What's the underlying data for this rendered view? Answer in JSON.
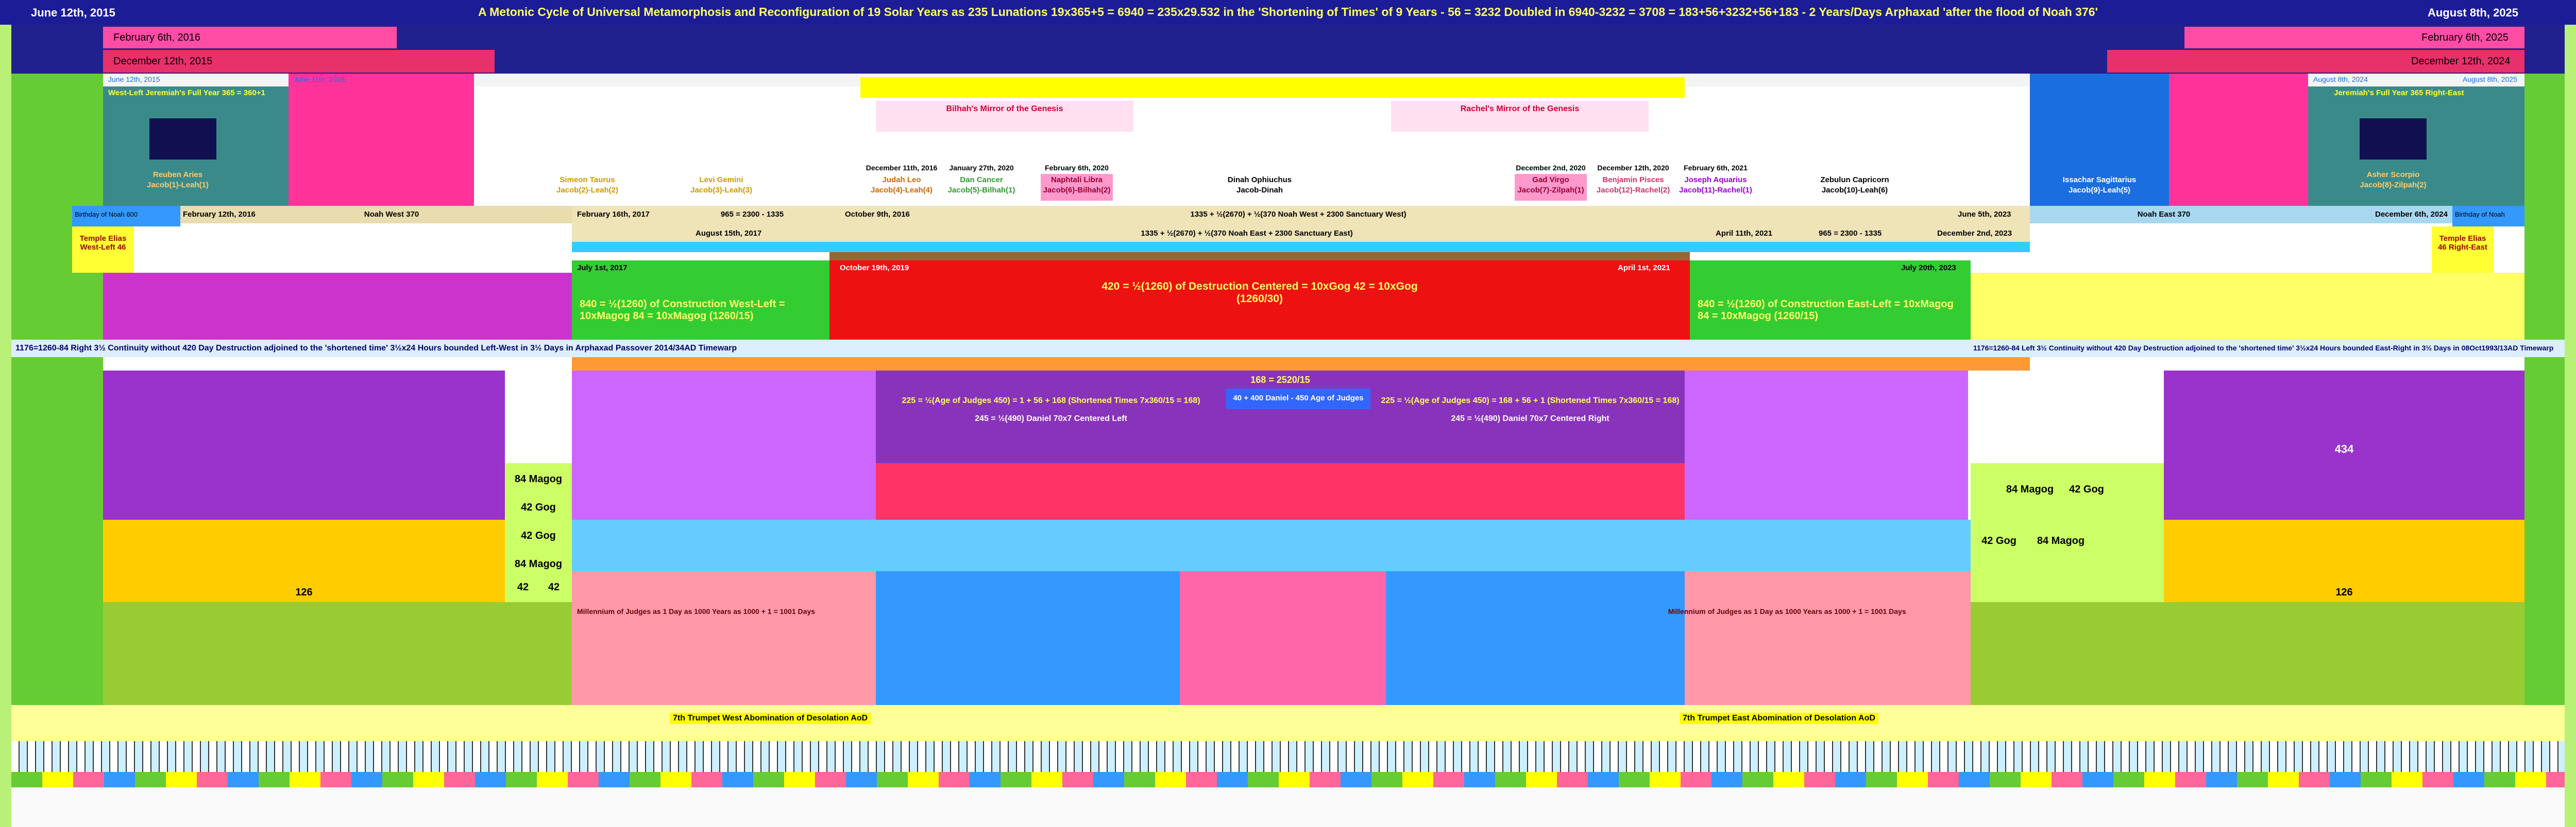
{
  "header": {
    "left_date": "June 12th, 2015",
    "title": "A Metonic Cycle of Universal Metamorphosis and Reconfiguration  of  19 Solar Years as 235 Lunations 19x365+5 = 6940 = 235x29.532 in the 'Shortening of Times' of 9 Years - 56 = 3232 Doubled in 6940-3232 = 3708 = 183+56+3232+56+183 - 2 Years/Days Arphaxad 'after the flood of Noah 376'",
    "right_date": "August 8th, 2025"
  },
  "top_dates": [
    "February 6th, 2016",
    "February 6th, 2025",
    "December 12th, 2015",
    "December 12th, 2024",
    "June 12th, 2015",
    "June 11th, 2016",
    "August 8th, 2024",
    "August 8th, 2025"
  ],
  "jeremiah": [
    "West-Left Jeremiah's Full Year 365 = 360+1",
    "Jeremiah's Full Year 365 Right-East"
  ],
  "mirrors": [
    "Bilhah's Mirror of the Genesis",
    "Rachel's Mirror of the Genesis"
  ],
  "tribes": [
    {
      "name": "Reuben Aries",
      "parent": "Jacob(1)-Leah(1)"
    },
    {
      "name": "Simeon Taurus",
      "parent": "Jacob(2)-Leah(2)"
    },
    {
      "name": "Levi Gemini",
      "parent": "Jacob(3)-Leah(3)"
    },
    {
      "name": "Judah Leo",
      "parent": "Jacob(4)-Leah(4)"
    },
    {
      "name": "Dan Cancer",
      "parent": "Jacob(5)-Bilhah(1)"
    },
    {
      "name": "Naphtali Libra",
      "parent": "Jacob(6)-Bilhah(2)"
    },
    {
      "name": "Dinah Ophiuchus",
      "parent": "Jacob-Dinah"
    },
    {
      "name": "Gad Virgo",
      "parent": "Jacob(7)-Zilpah(1)"
    },
    {
      "name": "Benjamin Pisces",
      "parent": "Jacob(12)-Rachel(2)"
    },
    {
      "name": "Joseph Aquarius",
      "parent": "Jacob(11)-Rachel(1)"
    },
    {
      "name": "Zebulun Capricorn",
      "parent": "Jacob(10)-Leah(6)"
    },
    {
      "name": "Issachar Sagittarius",
      "parent": "Jacob(9)-Leah(5)"
    },
    {
      "name": "Asher Scorpio",
      "parent": "Jacob(8)-Zilpah(2)"
    }
  ],
  "tribe_dates": [
    "December 11th, 2016",
    "January 27th, 2020",
    "February 6th, 2020",
    "December 2nd, 2020",
    "December 12th, 2020",
    "February 6th, 2021"
  ],
  "noah_row": [
    "Birthday of Noah 600",
    "February 12th, 2016",
    "Noah West 370",
    "February 16th, 2017",
    "965 = 2300 - 1335",
    "October 9th, 2016",
    "1335 + ½(2670) + ½(370 Noah West + 2300 Sanctuary West)",
    "June 5th, 2023",
    "Noah East 370",
    "December 6th, 2024",
    "Birthday of Noah"
  ],
  "sanctuary_row": [
    "August 15th, 2017",
    "1335 + ½(2670) + ½(370 Noah East + 2300 Sanctuary East)",
    "April 11th, 2021",
    "965 = 2300 - 1335",
    "December 2nd, 2023"
  ],
  "temple": [
    "Temple Elias West-Left 46",
    "Temple Elias 46 Right-East"
  ],
  "construction": {
    "dates": [
      "July 1st, 2017",
      "October 19th, 2019",
      "April 1st, 2021",
      "July 20th, 2023"
    ],
    "west": "840 = ½(1260) of Construction West-Left = 10xMagog 84 = 10xMagog (1260/15)",
    "center": "420 = ½(1260) of Destruction Centered = 10xGog 42 = 10xGog (1260/30)",
    "east": "840 = ½(1260) of Construction East-Left = 10xMagog 84 = 10xMagog (1260/15)"
  },
  "continuity": [
    "1176=1260-84 Right 3½ Continuity without 420 Day Destruction adjoined to the 'shortened time' 3½x24 Hours bounded Left-West in 3½ Days in Arphaxad Passover 2014/34AD Timewarp",
    "1176=1260-84 Left 3½ Continuity without 420 Day Destruction adjoined to the 'shortened time' 3½x24 Hours bounded East-Right in 3½ Days in 08Oct1993/13AD Timewarp"
  ],
  "judges": {
    "shortened": "168 = 2520/15",
    "left": "225 = ½(Age of Judges 450) = 1 + 56 + 168 (Shortened Times 7x360/15 = 168)",
    "center": "40 + 400 Daniel - 450 Age of Judges",
    "right": "225 = ½(Age of Judges 450) = 168 + 56 + 1 (Shortened Times 7x360/15 = 168)",
    "daniel_left": "245 = ½(490) Daniel 70x7 Centered Left",
    "daniel_right": "245 = ½(490) Daniel 70x7 Centered Right",
    "remnant": "434"
  },
  "magog": [
    "84 Magog",
    "42 Gog",
    "42 Gog",
    "84 Magog",
    "42",
    "42",
    "126",
    "84 Magog",
    "42 Gog",
    "42 Gog",
    "84 Magog",
    "126"
  ],
  "millennium": [
    "Millennium of Judges as 1 Day as 1000 Years as 1000 + 1 = 1001 Days",
    "Millennium of Judges as 1 Day as 1000 Years as 1000 + 1 = 1001 Days"
  ],
  "trumpets": [
    "7th Trumpet West Abomination of Desolation AoD",
    "7th Trumpet East Abomination of Desolation AoD"
  ]
}
